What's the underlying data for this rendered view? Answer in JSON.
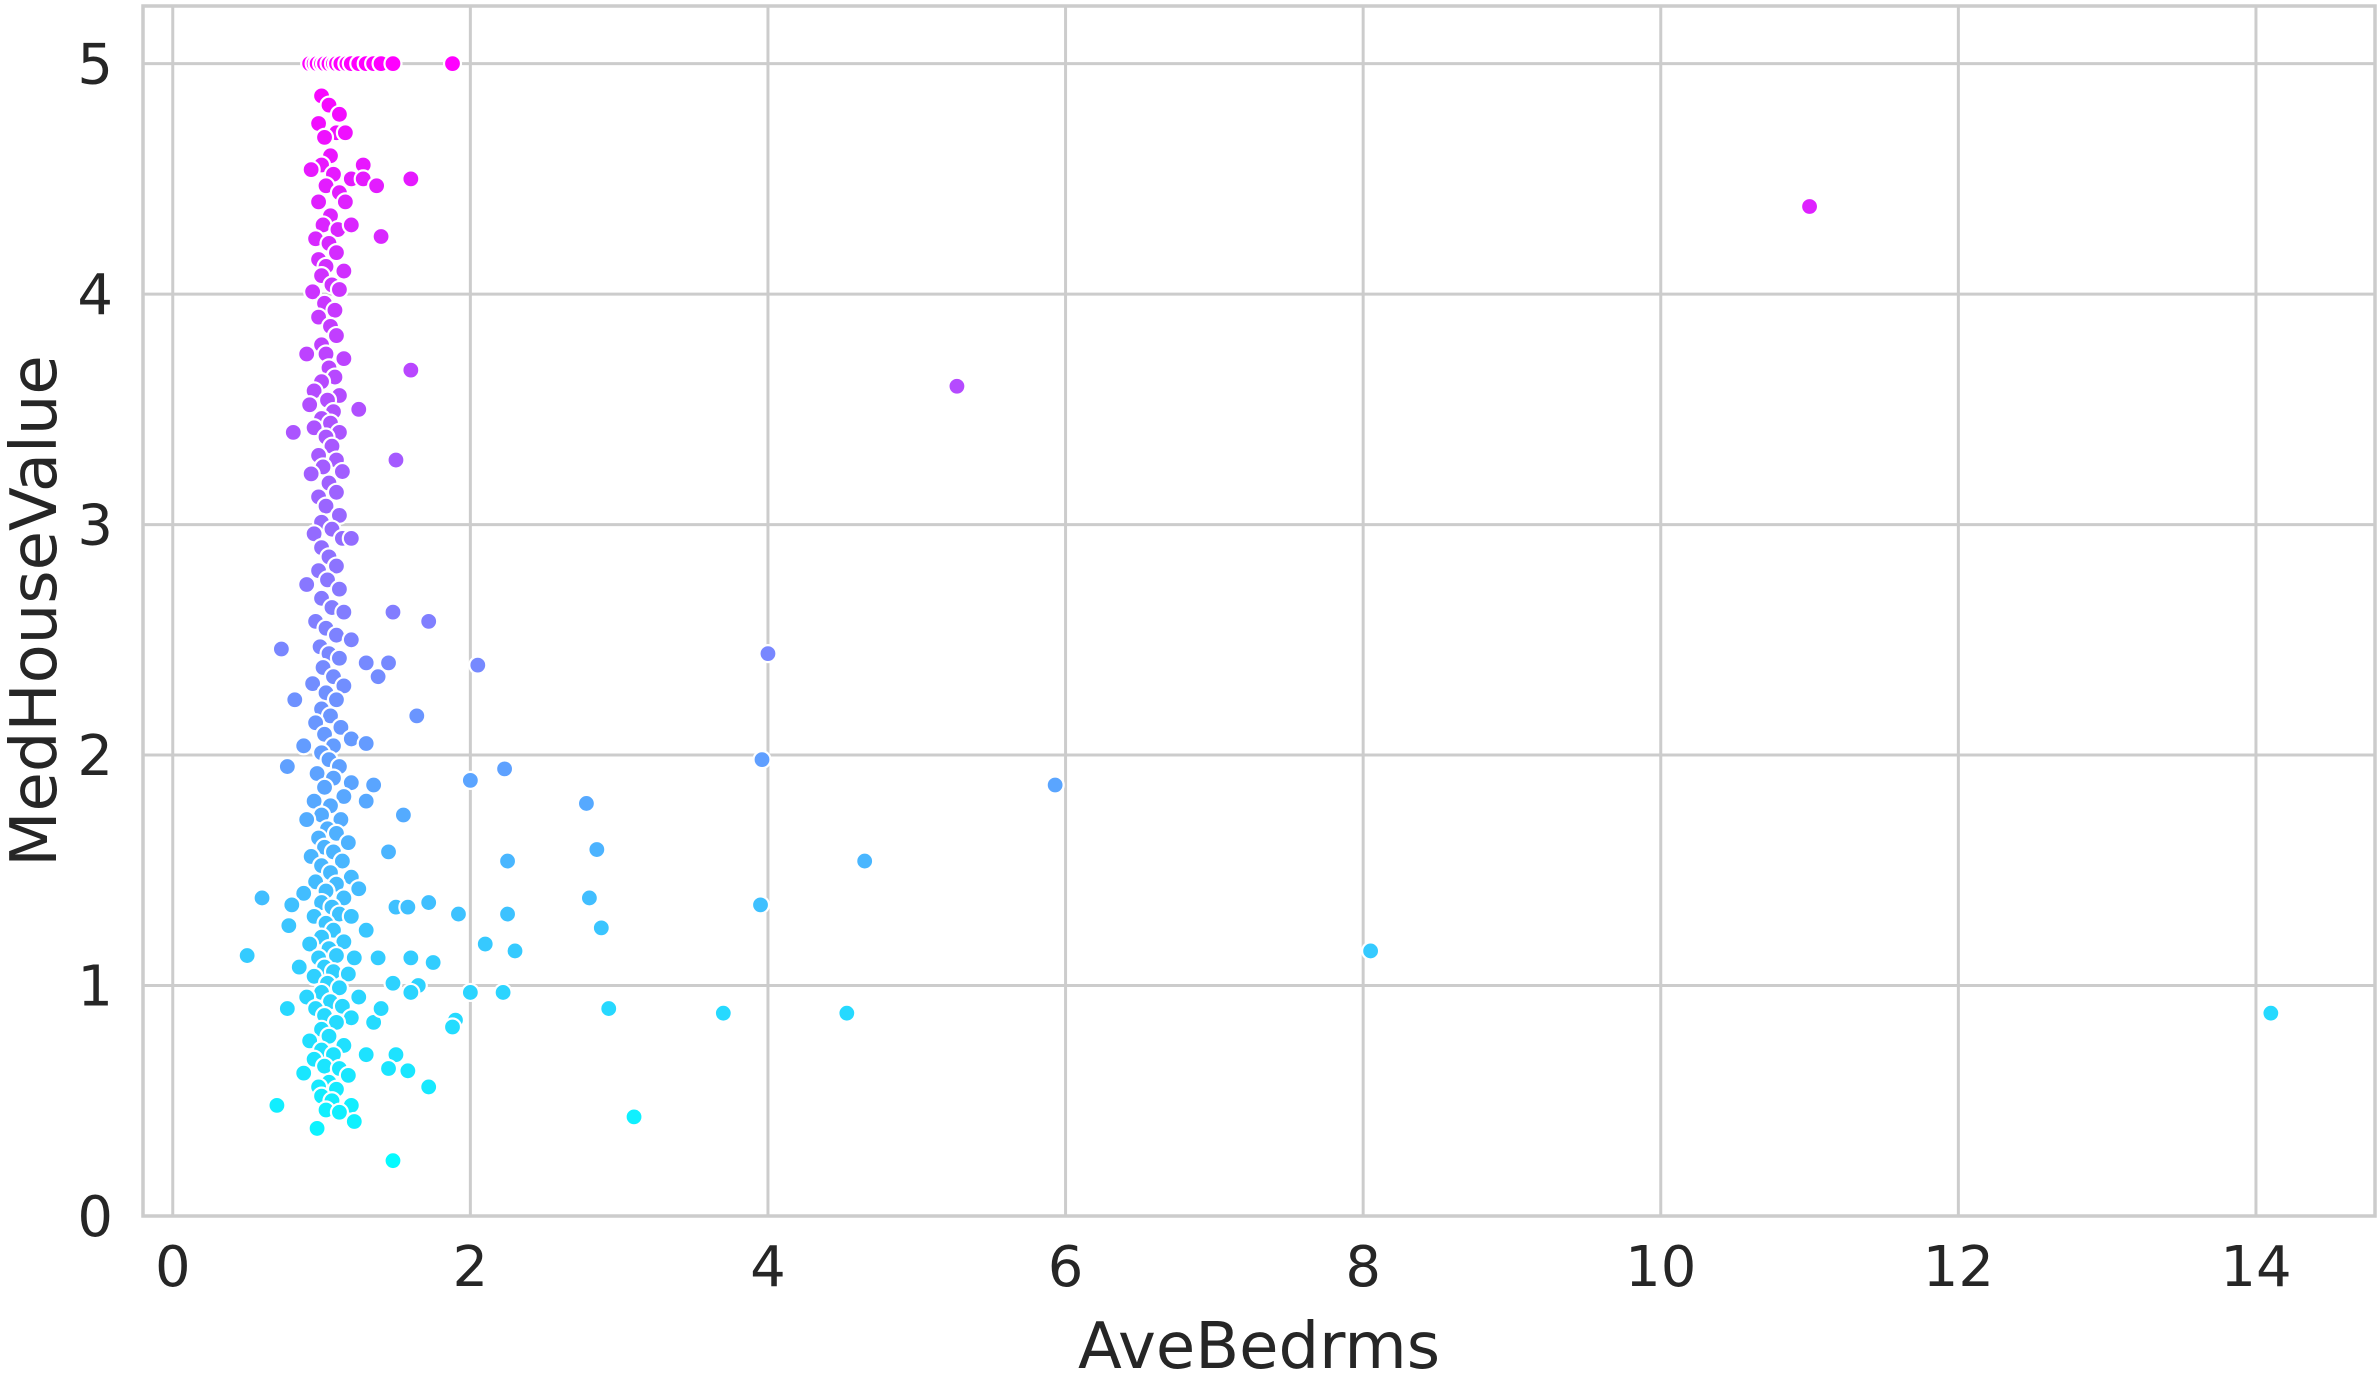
{
  "chart_data": {
    "type": "scatter",
    "title": "",
    "xlabel": "AveBedrms",
    "ylabel": "MedHouseValue",
    "xlim": [
      -0.2,
      14.8
    ],
    "ylim": [
      0,
      5.25
    ],
    "x_ticks": [
      "0",
      "2",
      "4",
      "6",
      "8",
      "10",
      "12",
      "14"
    ],
    "y_ticks": [
      "0",
      "1",
      "2",
      "3",
      "4",
      "5"
    ],
    "grid": true,
    "legend": "none",
    "color_scale": {
      "mapped_to": "MedHouseValue",
      "low": "#00ffff",
      "high": "#ff00ff",
      "range": [
        0.15,
        5.0
      ]
    },
    "points": [
      [
        0.92,
        5.0
      ],
      [
        0.95,
        5.0
      ],
      [
        0.97,
        5.0
      ],
      [
        1.0,
        5.0
      ],
      [
        1.02,
        5.0
      ],
      [
        1.05,
        5.0
      ],
      [
        1.08,
        5.0
      ],
      [
        1.1,
        5.0
      ],
      [
        1.13,
        5.0
      ],
      [
        1.17,
        5.0
      ],
      [
        1.2,
        5.0
      ],
      [
        1.25,
        5.0
      ],
      [
        1.3,
        5.0
      ],
      [
        1.35,
        5.0
      ],
      [
        1.4,
        5.0
      ],
      [
        1.48,
        5.0
      ],
      [
        1.88,
        5.0
      ],
      [
        1.0,
        4.86
      ],
      [
        1.05,
        4.82
      ],
      [
        1.12,
        4.78
      ],
      [
        0.98,
        4.74
      ],
      [
        1.1,
        4.7
      ],
      [
        1.02,
        4.68
      ],
      [
        1.16,
        4.7
      ],
      [
        1.06,
        4.6
      ],
      [
        1.0,
        4.56
      ],
      [
        1.28,
        4.56
      ],
      [
        0.93,
        4.54
      ],
      [
        1.08,
        4.52
      ],
      [
        1.2,
        4.5
      ],
      [
        1.28,
        4.5
      ],
      [
        1.37,
        4.47
      ],
      [
        1.6,
        4.5
      ],
      [
        1.03,
        4.47
      ],
      [
        1.12,
        4.44
      ],
      [
        0.98,
        4.4
      ],
      [
        1.16,
        4.4
      ],
      [
        1.06,
        4.34
      ],
      [
        1.01,
        4.3
      ],
      [
        1.11,
        4.28
      ],
      [
        1.2,
        4.3
      ],
      [
        0.96,
        4.24
      ],
      [
        1.05,
        4.22
      ],
      [
        1.4,
        4.25
      ],
      [
        1.1,
        4.18
      ],
      [
        0.98,
        4.15
      ],
      [
        1.03,
        4.12
      ],
      [
        1.15,
        4.1
      ],
      [
        11.0,
        4.38
      ],
      [
        1.0,
        4.08
      ],
      [
        1.07,
        4.04
      ],
      [
        1.12,
        4.02
      ],
      [
        0.94,
        4.01
      ],
      [
        1.02,
        3.96
      ],
      [
        1.09,
        3.93
      ],
      [
        0.98,
        3.9
      ],
      [
        1.06,
        3.86
      ],
      [
        1.1,
        3.82
      ],
      [
        1.0,
        3.78
      ],
      [
        1.03,
        3.74
      ],
      [
        0.9,
        3.74
      ],
      [
        1.15,
        3.72
      ],
      [
        1.05,
        3.68
      ],
      [
        1.09,
        3.64
      ],
      [
        1.6,
        3.67
      ],
      [
        1.0,
        3.62
      ],
      [
        0.95,
        3.58
      ],
      [
        1.12,
        3.56
      ],
      [
        1.04,
        3.54
      ],
      [
        0.92,
        3.52
      ],
      [
        1.08,
        3.49
      ],
      [
        1.25,
        3.5
      ],
      [
        1.0,
        3.46
      ],
      [
        1.06,
        3.44
      ],
      [
        0.95,
        3.42
      ],
      [
        1.12,
        3.4
      ],
      [
        0.81,
        3.4
      ],
      [
        1.03,
        3.38
      ],
      [
        1.07,
        3.34
      ],
      [
        0.98,
        3.3
      ],
      [
        1.1,
        3.28
      ],
      [
        1.5,
        3.28
      ],
      [
        1.01,
        3.25
      ],
      [
        1.14,
        3.23
      ],
      [
        0.93,
        3.22
      ],
      [
        1.05,
        3.18
      ],
      [
        1.1,
        3.14
      ],
      [
        0.98,
        3.12
      ],
      [
        1.03,
        3.08
      ],
      [
        1.12,
        3.04
      ],
      [
        1.0,
        3.01
      ],
      [
        5.27,
        3.6
      ],
      [
        1.07,
        2.98
      ],
      [
        0.95,
        2.96
      ],
      [
        1.14,
        2.94
      ],
      [
        1.2,
        2.94
      ],
      [
        1.0,
        2.9
      ],
      [
        1.05,
        2.86
      ],
      [
        1.1,
        2.82
      ],
      [
        0.98,
        2.8
      ],
      [
        1.04,
        2.76
      ],
      [
        0.9,
        2.74
      ],
      [
        1.12,
        2.72
      ],
      [
        1.0,
        2.68
      ],
      [
        1.07,
        2.64
      ],
      [
        1.15,
        2.62
      ],
      [
        1.48,
        2.62
      ],
      [
        1.72,
        2.58
      ],
      [
        0.96,
        2.58
      ],
      [
        1.03,
        2.55
      ],
      [
        1.1,
        2.52
      ],
      [
        1.2,
        2.5
      ],
      [
        0.99,
        2.47
      ],
      [
        0.73,
        2.46
      ],
      [
        1.05,
        2.44
      ],
      [
        1.12,
        2.42
      ],
      [
        1.3,
        2.4
      ],
      [
        1.45,
        2.4
      ],
      [
        2.05,
        2.39
      ],
      [
        1.01,
        2.38
      ],
      [
        1.08,
        2.34
      ],
      [
        1.38,
        2.34
      ],
      [
        0.94,
        2.31
      ],
      [
        1.15,
        2.3
      ],
      [
        1.03,
        2.27
      ],
      [
        1.1,
        2.24
      ],
      [
        0.82,
        2.24
      ],
      [
        1.0,
        2.2
      ],
      [
        1.06,
        2.17
      ],
      [
        1.64,
        2.17
      ],
      [
        0.96,
        2.14
      ],
      [
        1.13,
        2.12
      ],
      [
        1.02,
        2.09
      ],
      [
        1.2,
        2.07
      ],
      [
        1.08,
        2.04
      ],
      [
        0.88,
        2.04
      ],
      [
        1.3,
        2.05
      ],
      [
        1.0,
        2.01
      ],
      [
        4.0,
        2.44
      ],
      [
        3.96,
        1.98
      ],
      [
        2.23,
        1.94
      ],
      [
        2.0,
        1.89
      ],
      [
        1.35,
        1.87
      ],
      [
        2.78,
        1.79
      ],
      [
        5.93,
        1.87
      ],
      [
        1.55,
        1.74
      ],
      [
        1.05,
        1.98
      ],
      [
        0.77,
        1.95
      ],
      [
        1.12,
        1.95
      ],
      [
        0.97,
        1.92
      ],
      [
        1.08,
        1.9
      ],
      [
        1.2,
        1.88
      ],
      [
        1.02,
        1.86
      ],
      [
        1.15,
        1.82
      ],
      [
        0.95,
        1.8
      ],
      [
        1.3,
        1.8
      ],
      [
        1.06,
        1.78
      ],
      [
        1.0,
        1.74
      ],
      [
        1.13,
        1.72
      ],
      [
        0.9,
        1.72
      ],
      [
        1.04,
        1.68
      ],
      [
        1.1,
        1.66
      ],
      [
        0.98,
        1.64
      ],
      [
        1.18,
        1.62
      ],
      [
        1.02,
        1.6
      ],
      [
        1.08,
        1.58
      ],
      [
        1.45,
        1.58
      ],
      [
        0.93,
        1.56
      ],
      [
        1.14,
        1.54
      ],
      [
        1.0,
        1.52
      ],
      [
        1.06,
        1.49
      ],
      [
        1.2,
        1.47
      ],
      [
        0.96,
        1.45
      ],
      [
        1.1,
        1.44
      ],
      [
        1.03,
        1.41
      ],
      [
        1.25,
        1.42
      ],
      [
        0.88,
        1.4
      ],
      [
        1.15,
        1.38
      ],
      [
        0.6,
        1.38
      ],
      [
        1.0,
        1.36
      ],
      [
        0.8,
        1.35
      ],
      [
        1.07,
        1.34
      ],
      [
        1.5,
        1.34
      ],
      [
        1.58,
        1.34
      ],
      [
        1.72,
        1.36
      ],
      [
        1.12,
        1.31
      ],
      [
        0.95,
        1.3
      ],
      [
        1.2,
        1.3
      ],
      [
        1.03,
        1.27
      ],
      [
        0.78,
        1.26
      ],
      [
        1.08,
        1.24
      ],
      [
        1.3,
        1.24
      ],
      [
        1.0,
        1.21
      ],
      [
        1.15,
        1.19
      ],
      [
        0.92,
        1.18
      ],
      [
        1.05,
        1.16
      ],
      [
        1.1,
        1.13
      ],
      [
        0.98,
        1.12
      ],
      [
        0.5,
        1.13
      ],
      [
        1.22,
        1.12
      ],
      [
        1.38,
        1.12
      ],
      [
        1.6,
        1.12
      ],
      [
        1.75,
        1.1
      ],
      [
        1.02,
        1.08
      ],
      [
        1.08,
        1.06
      ],
      [
        0.85,
        1.08
      ],
      [
        1.18,
        1.05
      ],
      [
        0.95,
        1.04
      ],
      [
        1.04,
        1.01
      ],
      [
        1.12,
        0.99
      ],
      [
        1.48,
        1.01
      ],
      [
        1.65,
        1.0
      ],
      [
        1.0,
        0.97
      ],
      [
        1.25,
        0.95
      ],
      [
        0.9,
        0.95
      ],
      [
        1.06,
        0.93
      ],
      [
        1.14,
        0.91
      ],
      [
        0.96,
        0.9
      ],
      [
        1.02,
        0.87
      ],
      [
        1.2,
        0.86
      ],
      [
        0.77,
        0.9
      ],
      [
        1.1,
        0.84
      ],
      [
        1.35,
        0.84
      ],
      [
        1.0,
        0.81
      ],
      [
        1.05,
        0.78
      ],
      [
        0.92,
        0.76
      ],
      [
        1.15,
        0.74
      ],
      [
        1.0,
        0.72
      ],
      [
        1.08,
        0.7
      ],
      [
        1.3,
        0.7
      ],
      [
        1.5,
        0.7
      ],
      [
        0.95,
        0.68
      ],
      [
        1.02,
        0.65
      ],
      [
        1.12,
        0.64
      ],
      [
        0.88,
        0.62
      ],
      [
        1.18,
        0.61
      ],
      [
        1.05,
        0.58
      ],
      [
        0.98,
        0.56
      ],
      [
        1.1,
        0.55
      ],
      [
        1.0,
        0.52
      ],
      [
        1.07,
        0.5
      ],
      [
        1.2,
        0.48
      ],
      [
        0.7,
        0.48
      ],
      [
        1.03,
        0.46
      ],
      [
        1.12,
        0.45
      ],
      [
        1.22,
        0.41
      ],
      [
        0.97,
        0.38
      ],
      [
        1.48,
        0.24
      ],
      [
        1.45,
        0.64
      ],
      [
        1.58,
        0.63
      ],
      [
        1.72,
        0.56
      ],
      [
        1.4,
        0.9
      ],
      [
        1.6,
        0.97
      ],
      [
        2.1,
        1.18
      ],
      [
        2.25,
        1.31
      ],
      [
        2.3,
        1.15
      ],
      [
        1.92,
        1.31
      ],
      [
        2.22,
        0.97
      ],
      [
        2.0,
        0.97
      ],
      [
        1.9,
        0.85
      ],
      [
        1.88,
        0.82
      ],
      [
        2.25,
        1.54
      ],
      [
        2.85,
        1.59
      ],
      [
        2.8,
        1.38
      ],
      [
        2.88,
        1.25
      ],
      [
        2.93,
        0.9
      ],
      [
        3.95,
        1.35
      ],
      [
        3.7,
        0.88
      ],
      [
        4.53,
        0.88
      ],
      [
        4.65,
        1.54
      ],
      [
        3.1,
        0.43
      ],
      [
        8.05,
        1.15
      ],
      [
        14.1,
        0.88
      ]
    ]
  }
}
